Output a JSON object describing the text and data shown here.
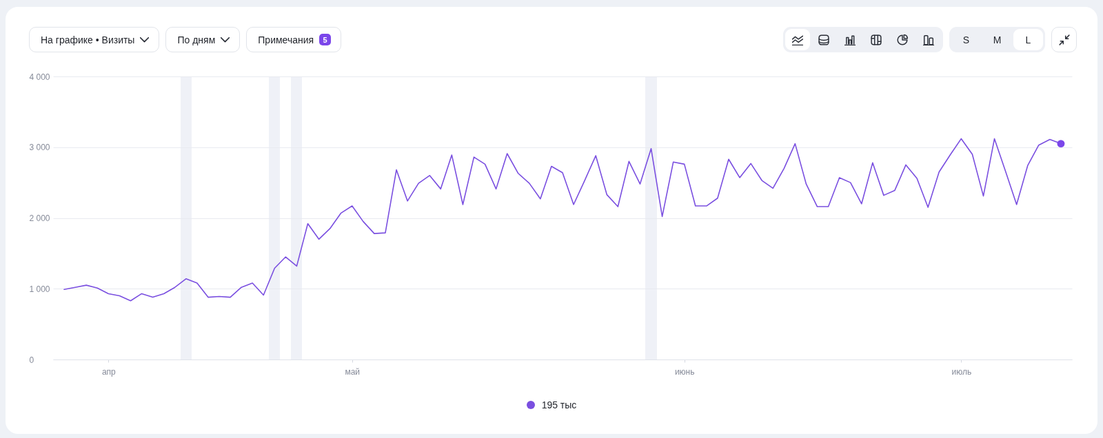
{
  "chart_data": {
    "type": "line",
    "categories": [
      null,
      null,
      null,
      null,
      "апр",
      null,
      null,
      null,
      null,
      null,
      null,
      null,
      null,
      null,
      null,
      null,
      null,
      null,
      null,
      null,
      null,
      null,
      null,
      null,
      null,
      null,
      "май",
      null,
      null,
      null,
      null,
      null,
      null,
      null,
      null,
      null,
      null,
      null,
      null,
      null,
      null,
      null,
      null,
      null,
      null,
      null,
      null,
      null,
      null,
      null,
      null,
      null,
      null,
      null,
      null,
      null,
      "июнь",
      null,
      null,
      null,
      null,
      null,
      null,
      null,
      null,
      null,
      null,
      null,
      null,
      null,
      null,
      null,
      null,
      null,
      null,
      null,
      null,
      null,
      null,
      null,
      null,
      "июль",
      null,
      null,
      null,
      null,
      null,
      null,
      null,
      null,
      null
    ],
    "series": [
      {
        "color": "#7a4fe0",
        "values": [
          990,
          1020,
          1050,
          1010,
          930,
          900,
          830,
          930,
          880,
          930,
          1020,
          1140,
          1080,
          880,
          890,
          880,
          1020,
          1080,
          910,
          1290,
          1450,
          1320,
          1920,
          1700,
          1850,
          2070,
          2170,
          1950,
          1780,
          1790,
          2680,
          2240,
          2490,
          2600,
          2410,
          2890,
          2190,
          2860,
          2760,
          2410,
          2910,
          2630,
          2490,
          2270,
          2730,
          2640,
          2190,
          2530,
          2880,
          2330,
          2160,
          2800,
          2480,
          2980,
          2020,
          2790,
          2760,
          2170,
          2170,
          2280,
          2830,
          2570,
          2770,
          2530,
          2420,
          2700,
          3050,
          2480,
          2160,
          2160,
          2570,
          2500,
          2200,
          2780,
          2320,
          2390,
          2750,
          2560,
          2150,
          2650,
          2890,
          3120,
          2900,
          2310,
          3120,
          2660,
          2190,
          2740,
          3030,
          3110,
          3050
        ]
      },
      {
        "type": "scatter",
        "color": "#7b46ea",
        "values": [
          null,
          null,
          null,
          null,
          null,
          null,
          null,
          null,
          null,
          null,
          null,
          null,
          null,
          null,
          null,
          null,
          null,
          null,
          null,
          null,
          null,
          null,
          null,
          null,
          null,
          null,
          null,
          null,
          null,
          null,
          null,
          null,
          null,
          null,
          null,
          null,
          null,
          null,
          null,
          null,
          null,
          null,
          null,
          null,
          null,
          null,
          null,
          null,
          null,
          null,
          null,
          null,
          null,
          null,
          null,
          null,
          null,
          null,
          null,
          null,
          null,
          null,
          null,
          null,
          null,
          null,
          null,
          null,
          null,
          null,
          null,
          null,
          null,
          null,
          null,
          null,
          null,
          null,
          null,
          null,
          null,
          null,
          null,
          null,
          null,
          null,
          null,
          null,
          null,
          null,
          3050
        ]
      }
    ],
    "ylim": [
      0,
      4000
    ],
    "yticks": [
      0,
      {
        "value": 1000,
        "label": "1 000"
      },
      {
        "value": 2000,
        "label": "2 000"
      },
      {
        "value": 3000,
        "label": "3 000"
      },
      {
        "value": 4000,
        "label": "4 000"
      }
    ],
    "grid": "y",
    "annotations": [
      "На графике • Визиты",
      "По дням",
      "Примечания",
      "5",
      "S",
      "M",
      "L",
      "195 тыс"
    ]
  }
}
